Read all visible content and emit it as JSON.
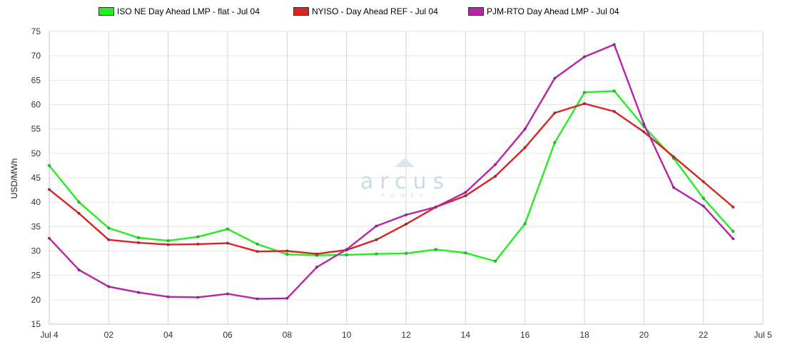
{
  "chart_data": {
    "type": "line",
    "title": "",
    "xlabel": "",
    "ylabel": "USD/MWh",
    "ylim": [
      15,
      75
    ],
    "yticks": [
      15,
      20,
      25,
      30,
      35,
      40,
      45,
      50,
      55,
      60,
      65,
      70,
      75
    ],
    "x": [
      0,
      1,
      2,
      3,
      4,
      5,
      6,
      7,
      8,
      9,
      10,
      11,
      12,
      13,
      14,
      15,
      16,
      17,
      18,
      19,
      20,
      21,
      22,
      23
    ],
    "xlim": [
      0,
      24
    ],
    "x_ticks": [
      {
        "hour": 0,
        "label": "Jul 4"
      },
      {
        "hour": 2,
        "label": "02"
      },
      {
        "hour": 4,
        "label": "04"
      },
      {
        "hour": 6,
        "label": "06"
      },
      {
        "hour": 8,
        "label": "08"
      },
      {
        "hour": 10,
        "label": "10"
      },
      {
        "hour": 12,
        "label": "12"
      },
      {
        "hour": 14,
        "label": "14"
      },
      {
        "hour": 16,
        "label": "16"
      },
      {
        "hour": 18,
        "label": "18"
      },
      {
        "hour": 20,
        "label": "20"
      },
      {
        "hour": 22,
        "label": "22"
      },
      {
        "hour": 24,
        "label": "Jul 5"
      }
    ],
    "grid": true,
    "legend_position": "top",
    "series": [
      {
        "name": "ISO NE Day Ahead LMP - flat - Jul 04",
        "color": "#22ee22",
        "values": [
          47.5,
          40.0,
          34.7,
          32.7,
          32.1,
          32.9,
          34.5,
          31.4,
          29.3,
          29.1,
          29.2,
          29.4,
          29.5,
          30.3,
          29.6,
          27.9,
          35.6,
          52.2,
          62.5,
          62.8,
          55.5,
          49.0,
          40.8,
          34.0
        ]
      },
      {
        "name": "NYISO - Day Ahead REF - Jul 04",
        "color": "#dd2222",
        "values": [
          42.6,
          37.7,
          32.3,
          31.7,
          31.3,
          31.4,
          31.6,
          29.9,
          30.0,
          29.4,
          30.2,
          32.3,
          35.5,
          39.0,
          41.3,
          45.3,
          51.2,
          58.3,
          60.2,
          58.6,
          54.4,
          49.3,
          44.2,
          39.0
        ]
      },
      {
        "name": "PJM-RTO Day Ahead LMP - Jul 04",
        "color": "#bb22aa",
        "values": [
          32.6,
          26.1,
          22.7,
          21.5,
          20.6,
          20.5,
          21.2,
          20.2,
          20.3,
          26.7,
          30.3,
          35.1,
          37.4,
          39.0,
          42.0,
          47.7,
          55.0,
          65.4,
          69.8,
          72.3,
          56.0,
          43.0,
          39.2,
          32.5
        ]
      }
    ]
  },
  "watermark": {
    "brand": "arcus",
    "sub": "POWER"
  }
}
